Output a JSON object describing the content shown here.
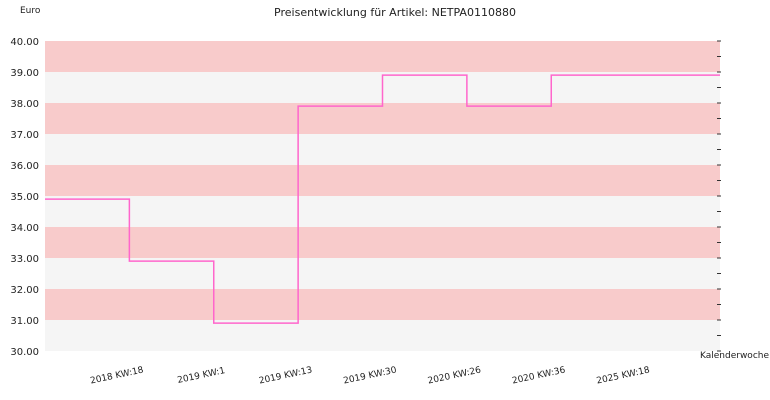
{
  "chart_data": {
    "type": "line",
    "step": true,
    "title": "Preisentwicklung für Artikel: NETPA0110880",
    "ylabel": "Euro",
    "xlabel": "Kalenderwoche",
    "ylim": [
      30,
      40
    ],
    "yticks": [
      "30.00",
      "31.00",
      "32.00",
      "33.00",
      "34.00",
      "35.00",
      "36.00",
      "37.00",
      "38.00",
      "39.00",
      "40.00"
    ],
    "categories": [
      "2018 KW:18",
      "2019 KW:1",
      "2019 KW:13",
      "2019 KW:30",
      "2020 KW:26",
      "2020 KW:36",
      "2025 KW:18"
    ],
    "series": [
      {
        "values": [
          34.9,
          32.9,
          30.9,
          37.9,
          38.9,
          37.9,
          38.9
        ]
      }
    ],
    "colors": {
      "line": "#ff66cc",
      "band_dark": "#f8cbcb",
      "band_light": "#f5f5f5"
    },
    "grid": false,
    "legend": "none"
  }
}
